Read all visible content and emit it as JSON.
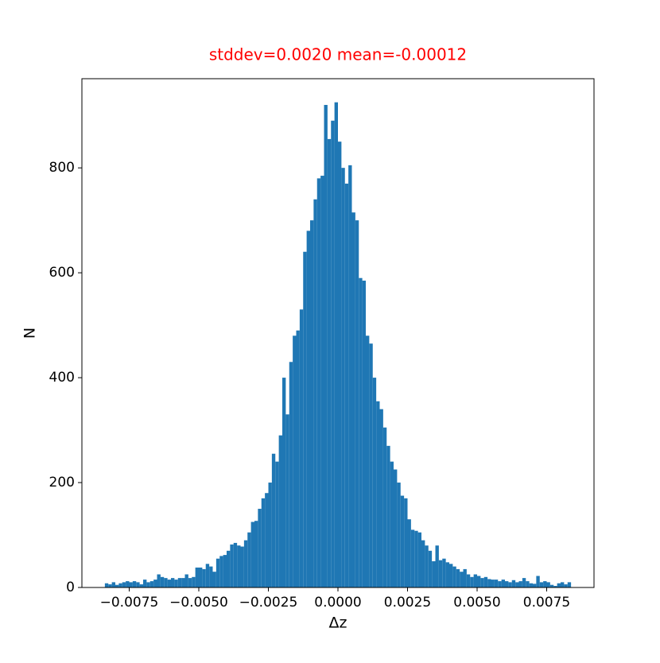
{
  "chart_data": {
    "type": "histogram",
    "title": "stddev=0.0020 mean=-0.00012",
    "title_color": "#ff0000",
    "xlabel": "Δz",
    "ylabel": "N",
    "color": "#1f77b4",
    "bins": [
      -0.008375,
      -0.00825,
      -0.008125,
      -0.008,
      -0.007875,
      -0.00775,
      -0.007625,
      -0.0075,
      -0.007375,
      -0.00725,
      -0.007125,
      -0.007,
      -0.006875,
      -0.00675,
      -0.006625,
      -0.0065,
      -0.006375,
      -0.00625,
      -0.006125,
      -0.006,
      -0.005875,
      -0.00575,
      -0.005625,
      -0.0055,
      -0.005375,
      -0.00525,
      -0.005125,
      -0.005,
      -0.004875,
      -0.00475,
      -0.004625,
      -0.0045,
      -0.004375,
      -0.00425,
      -0.004125,
      -0.004,
      -0.003875,
      -0.00375,
      -0.003625,
      -0.0035,
      -0.003375,
      -0.00325,
      -0.003125,
      -0.003,
      -0.002875,
      -0.00275,
      -0.002625,
      -0.0025,
      -0.002375,
      -0.00225,
      -0.002125,
      -0.002,
      -0.001875,
      -0.00175,
      -0.001625,
      -0.0015,
      -0.001375,
      -0.00125,
      -0.001125,
      -0.001,
      -0.000875,
      -0.00075,
      -0.000625,
      -0.0005,
      -0.000375,
      -0.00025,
      -0.000125,
      0,
      0.000125,
      0.00025,
      0.000375,
      0.0005,
      0.000625,
      0.00075,
      0.000875,
      0.001,
      0.001125,
      0.00125,
      0.001375,
      0.0015,
      0.001625,
      0.00175,
      0.001875,
      0.002,
      0.002125,
      0.00225,
      0.002375,
      0.0025,
      0.002625,
      0.00275,
      0.002875,
      0.003,
      0.003125,
      0.00325,
      0.003375,
      0.0035,
      0.003625,
      0.00375,
      0.003875,
      0.004,
      0.004125,
      0.00425,
      0.004375,
      0.0045,
      0.004625,
      0.00475,
      0.004875,
      0.005,
      0.005125,
      0.00525,
      0.005375,
      0.0055,
      0.005625,
      0.00575,
      0.005875,
      0.006,
      0.006125,
      0.00625,
      0.006375,
      0.0065,
      0.006625,
      0.00675,
      0.006875,
      0.007,
      0.007125,
      0.00725,
      0.007375,
      0.0075,
      0.007625,
      0.00775,
      0.007875,
      0.008,
      0.008125,
      0.00825,
      0.008375
    ],
    "values": [
      8,
      6,
      10,
      5,
      8,
      10,
      12,
      10,
      12,
      10,
      6,
      15,
      10,
      12,
      15,
      25,
      20,
      18,
      15,
      18,
      15,
      18,
      18,
      25,
      18,
      20,
      38,
      38,
      35,
      45,
      40,
      30,
      55,
      60,
      62,
      70,
      82,
      85,
      80,
      78,
      90,
      105,
      125,
      127,
      150,
      170,
      180,
      200,
      255,
      240,
      290,
      400,
      330,
      430,
      480,
      490,
      530,
      640,
      680,
      700,
      740,
      780,
      785,
      920,
      855,
      890,
      925,
      850,
      800,
      770,
      805,
      715,
      700,
      590,
      585,
      480,
      465,
      400,
      355,
      340,
      305,
      270,
      240,
      225,
      200,
      175,
      170,
      130,
      110,
      108,
      105,
      90,
      80,
      70,
      50,
      80,
      52,
      55,
      48,
      45,
      40,
      35,
      30,
      35,
      25,
      20,
      25,
      22,
      18,
      20,
      16,
      15,
      15,
      12,
      15,
      12,
      10,
      14,
      10,
      12,
      18,
      12,
      8,
      7,
      22,
      10,
      12,
      10,
      5,
      3,
      8,
      10,
      6,
      10
    ],
    "xlim": [
      -0.0092,
      0.0092
    ],
    "ylim": [
      0,
      970
    ],
    "xticks": [
      {
        "value": -0.0075,
        "label": "−0.0075"
      },
      {
        "value": -0.005,
        "label": "−0.0050"
      },
      {
        "value": -0.0025,
        "label": "−0.0025"
      },
      {
        "value": 0,
        "label": "0.0000"
      },
      0.0025,
      {
        "value": 0.005,
        "label": "0.0050"
      },
      0.0075
    ],
    "yticks": [
      0,
      200,
      400,
      600,
      800
    ]
  }
}
